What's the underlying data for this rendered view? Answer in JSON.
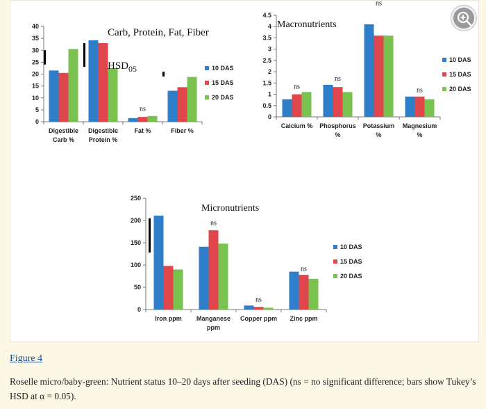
{
  "colors": {
    "das10": "#2f7ec9",
    "das15": "#e0474c",
    "das20": "#79c250"
  },
  "chart_data": [
    {
      "type": "bar",
      "title": "Carb, Protein, Fat, Fiber",
      "categories": [
        [
          "Digestible",
          "Carb %"
        ],
        [
          "Digestible",
          "Protein %"
        ],
        [
          "Fat %"
        ],
        [
          "Fiber %"
        ]
      ],
      "series": [
        {
          "name": "10 DAS",
          "values": [
            21.5,
            34.2,
            1.5,
            13.0
          ]
        },
        {
          "name": "15 DAS",
          "values": [
            20.5,
            33.0,
            2.0,
            14.5
          ]
        },
        {
          "name": "20 DAS",
          "values": [
            30.5,
            22.5,
            2.4,
            18.8
          ]
        }
      ],
      "ylim": [
        0,
        40
      ],
      "yticks": [
        0,
        5,
        10,
        15,
        20,
        25,
        30,
        35,
        40
      ],
      "hsd_bars": [
        {
          "category": 0,
          "low": 24,
          "high": 30
        },
        {
          "category": 1,
          "low": 23,
          "high": 33
        },
        {
          "category": 3,
          "low": 19,
          "high": 21
        }
      ],
      "ns_labels": [
        {
          "category": 2,
          "text": "ns",
          "y": 4.5
        }
      ],
      "annotation": {
        "main": "HSD",
        "sub": "05"
      },
      "legend": "right"
    },
    {
      "type": "bar",
      "title": "Macronutrients",
      "categories": [
        [
          "Calcium %"
        ],
        [
          "Phosphorus",
          "%"
        ],
        [
          "Potassium",
          "%"
        ],
        [
          "Magnesium",
          "%"
        ]
      ],
      "series": [
        {
          "name": "10 DAS",
          "values": [
            0.78,
            1.42,
            4.1,
            0.9
          ]
        },
        {
          "name": "15 DAS",
          "values": [
            1.0,
            1.32,
            3.6,
            0.9
          ]
        },
        {
          "name": "20 DAS",
          "values": [
            1.1,
            1.1,
            3.6,
            0.78
          ]
        }
      ],
      "ylim": [
        0,
        4.5
      ],
      "yticks": [
        0,
        0.5,
        1,
        1.5,
        2,
        2.5,
        3,
        3.5,
        4,
        4.5
      ],
      "ns_labels": [
        {
          "category": 0,
          "text": "ns",
          "y": 1.25
        },
        {
          "category": 1,
          "text": "ns",
          "y": 1.6
        },
        {
          "category": 2,
          "text": "ns",
          "y": 4.95
        },
        {
          "category": 3,
          "text": "ns",
          "y": 1.1
        }
      ],
      "legend": "right"
    },
    {
      "type": "bar",
      "title": "Micronutrients",
      "categories": [
        [
          "Iron ppm"
        ],
        [
          "Manganese",
          "ppm"
        ],
        [
          "Copper ppm"
        ],
        [
          "Zinc ppm"
        ]
      ],
      "series": [
        {
          "name": "10 DAS",
          "values": [
            211,
            141,
            9,
            85
          ]
        },
        {
          "name": "15 DAS",
          "values": [
            98,
            178,
            6,
            78
          ]
        },
        {
          "name": "20 DAS",
          "values": [
            90,
            148,
            4,
            69
          ]
        }
      ],
      "ylim": [
        0,
        250
      ],
      "yticks": [
        0,
        50,
        100,
        150,
        200,
        250
      ],
      "hsd_bars": [
        {
          "category": 0,
          "low": 128,
          "high": 205
        }
      ],
      "ns_labels": [
        {
          "category": 1,
          "text": "ns",
          "y": 190
        },
        {
          "category": 2,
          "text": "ns",
          "y": 18
        },
        {
          "category": 3,
          "text": "ns",
          "y": 87
        }
      ],
      "legend": "right"
    }
  ],
  "figure_link": "Figure 4",
  "caption": "Roselle micro/baby-green: Nutrient status 10–20 days after seeding (DAS) (ns = no significant difference; bars show Tukey’s HSD at α = 0.05)."
}
